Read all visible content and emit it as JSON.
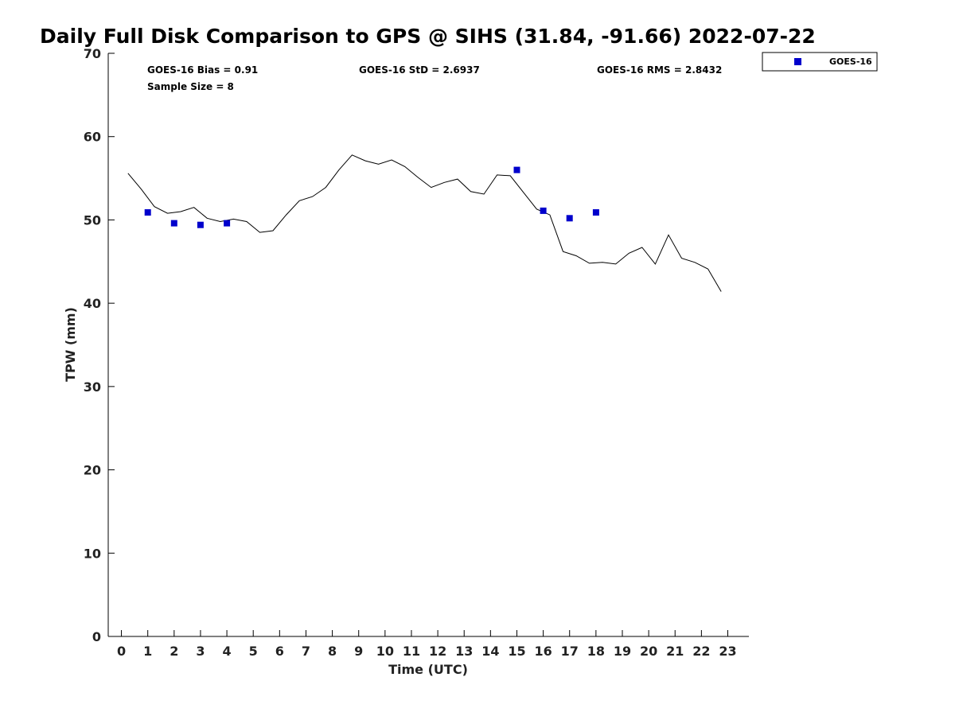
{
  "chart_data": {
    "type": "line",
    "title": "Daily Full Disk Comparison to GPS @ SIHS (31.84, -91.66) 2022-07-22",
    "xlabel": "Time (UTC)",
    "ylabel": "TPW (mm)",
    "xlim": [
      -0.5,
      23.8
    ],
    "ylim": [
      0,
      70
    ],
    "x_ticks": [
      0,
      1,
      2,
      3,
      4,
      5,
      6,
      7,
      8,
      9,
      10,
      11,
      12,
      13,
      14,
      15,
      16,
      17,
      18,
      19,
      20,
      21,
      22,
      23
    ],
    "y_ticks": [
      0,
      10,
      20,
      30,
      40,
      50,
      60,
      70
    ],
    "grid": false,
    "legend_position": "top-right, outside plot area",
    "stats": {
      "bias": "GOES-16 Bias = 0.91",
      "sample_size": "Sample Size = 8",
      "std": "GOES-16 StD = 2.6937",
      "rms": "GOES-16 RMS = 2.8432"
    },
    "series": [
      {
        "style": "line",
        "color": "#000000",
        "x": [
          0.25,
          0.75,
          1.25,
          1.75,
          2.25,
          2.75,
          3.25,
          3.75,
          4.25,
          4.75,
          5.25,
          5.75,
          6.25,
          6.75,
          7.25,
          7.75,
          8.25,
          8.75,
          9.25,
          9.75,
          10.25,
          10.75,
          11.25,
          11.75,
          12.25,
          12.75,
          13.25,
          13.75,
          14.25,
          14.75,
          15.25,
          15.75,
          16.25,
          16.75,
          17.25,
          17.75,
          18.25,
          18.75,
          19.25,
          19.75,
          20.25,
          20.75,
          21.25,
          21.75,
          22.25,
          22.75
        ],
        "values": [
          55.6,
          53.7,
          51.6,
          50.8,
          51.0,
          51.5,
          50.2,
          49.8,
          50.1,
          49.8,
          48.5,
          48.7,
          50.6,
          52.3,
          52.8,
          53.9,
          56.0,
          57.8,
          57.1,
          56.7,
          57.2,
          56.4,
          55.1,
          53.9,
          54.5,
          54.9,
          53.4,
          53.1,
          55.4,
          55.3,
          53.3,
          51.3,
          50.6,
          46.2,
          45.7,
          44.8,
          44.9,
          44.7,
          46.0,
          46.7,
          44.7,
          48.2,
          45.4,
          44.9,
          44.1,
          41.4
        ]
      },
      {
        "name": "GOES-16",
        "style": "square-markers",
        "color": "#0000cc",
        "x": [
          1,
          2,
          3,
          4,
          15,
          16,
          17,
          18
        ],
        "values": [
          50.9,
          49.6,
          49.4,
          49.6,
          56.0,
          51.1,
          50.2,
          50.9
        ]
      }
    ]
  }
}
